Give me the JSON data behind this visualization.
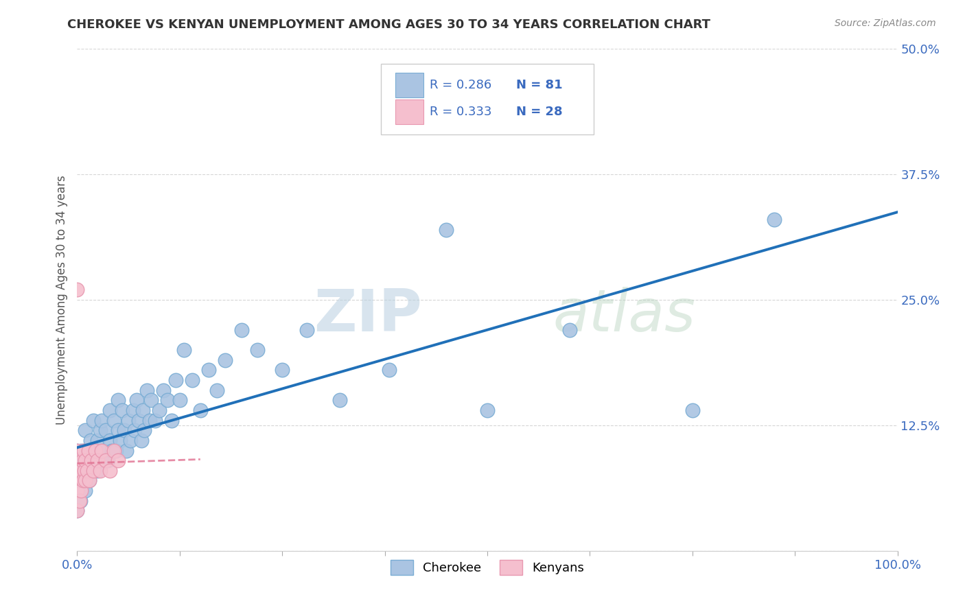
{
  "title": "CHEROKEE VS KENYAN UNEMPLOYMENT AMONG AGES 30 TO 34 YEARS CORRELATION CHART",
  "source": "Source: ZipAtlas.com",
  "ylabel": "Unemployment Among Ages 30 to 34 years",
  "xlim": [
    0,
    1.0
  ],
  "ylim": [
    0,
    0.5
  ],
  "xticks": [
    0.0,
    0.125,
    0.25,
    0.375,
    0.5,
    0.625,
    0.75,
    0.875,
    1.0
  ],
  "xticklabels": [
    "0.0%",
    "",
    "",
    "",
    "",
    "",
    "",
    "",
    "100.0%"
  ],
  "yticks": [
    0.0,
    0.125,
    0.25,
    0.375,
    0.5
  ],
  "yticklabels": [
    "",
    "12.5%",
    "25.0%",
    "37.5%",
    "50.0%"
  ],
  "cherokee_R": "0.286",
  "cherokee_N": "81",
  "kenyan_R": "0.333",
  "kenyan_N": "28",
  "cherokee_color": "#aac4e2",
  "cherokee_edge": "#7aadd4",
  "kenyan_color": "#f5bfce",
  "kenyan_edge": "#e898b0",
  "trend_cherokee_color": "#2070b8",
  "trend_kenyan_color": "#e07090",
  "watermark_zip": "ZIP",
  "watermark_atlas": "atlas",
  "cherokee_x": [
    0.0,
    0.0,
    0.0,
    0.0,
    0.002,
    0.003,
    0.004,
    0.005,
    0.005,
    0.005,
    0.006,
    0.007,
    0.008,
    0.009,
    0.01,
    0.01,
    0.01,
    0.012,
    0.013,
    0.015,
    0.015,
    0.016,
    0.018,
    0.02,
    0.02,
    0.022,
    0.025,
    0.025,
    0.028,
    0.03,
    0.03,
    0.032,
    0.035,
    0.037,
    0.04,
    0.04,
    0.042,
    0.045,
    0.047,
    0.05,
    0.05,
    0.052,
    0.055,
    0.057,
    0.06,
    0.062,
    0.065,
    0.068,
    0.07,
    0.072,
    0.075,
    0.078,
    0.08,
    0.082,
    0.085,
    0.088,
    0.09,
    0.095,
    0.1,
    0.105,
    0.11,
    0.115,
    0.12,
    0.125,
    0.13,
    0.14,
    0.15,
    0.16,
    0.17,
    0.18,
    0.2,
    0.22,
    0.25,
    0.28,
    0.32,
    0.38,
    0.45,
    0.5,
    0.6,
    0.75,
    0.85
  ],
  "cherokee_y": [
    0.08,
    0.1,
    0.06,
    0.04,
    0.07,
    0.09,
    0.05,
    0.08,
    0.1,
    0.06,
    0.09,
    0.07,
    0.1,
    0.08,
    0.06,
    0.09,
    0.12,
    0.08,
    0.1,
    0.07,
    0.09,
    0.11,
    0.08,
    0.1,
    0.13,
    0.09,
    0.11,
    0.08,
    0.12,
    0.09,
    0.13,
    0.1,
    0.12,
    0.09,
    0.11,
    0.14,
    0.1,
    0.13,
    0.1,
    0.12,
    0.15,
    0.11,
    0.14,
    0.12,
    0.1,
    0.13,
    0.11,
    0.14,
    0.12,
    0.15,
    0.13,
    0.11,
    0.14,
    0.12,
    0.16,
    0.13,
    0.15,
    0.13,
    0.14,
    0.16,
    0.15,
    0.13,
    0.17,
    0.15,
    0.2,
    0.17,
    0.14,
    0.18,
    0.16,
    0.19,
    0.22,
    0.2,
    0.18,
    0.22,
    0.15,
    0.18,
    0.32,
    0.14,
    0.22,
    0.14,
    0.33
  ],
  "kenyan_x": [
    0.0,
    0.0,
    0.0,
    0.0,
    0.0,
    0.002,
    0.003,
    0.004,
    0.005,
    0.006,
    0.007,
    0.008,
    0.009,
    0.01,
    0.01,
    0.012,
    0.014,
    0.015,
    0.017,
    0.02,
    0.022,
    0.025,
    0.028,
    0.03,
    0.035,
    0.04,
    0.045,
    0.05
  ],
  "kenyan_y": [
    0.04,
    0.06,
    0.08,
    0.1,
    0.26,
    0.07,
    0.05,
    0.08,
    0.06,
    0.09,
    0.07,
    0.1,
    0.08,
    0.07,
    0.09,
    0.08,
    0.1,
    0.07,
    0.09,
    0.08,
    0.1,
    0.09,
    0.08,
    0.1,
    0.09,
    0.08,
    0.1,
    0.09
  ]
}
